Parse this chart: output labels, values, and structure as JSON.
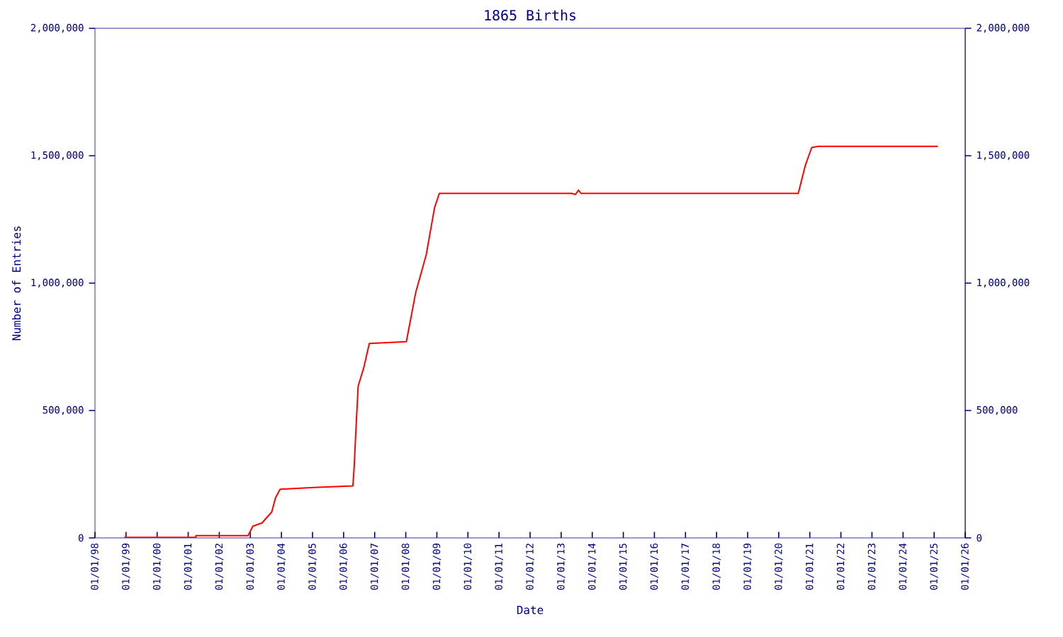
{
  "chart_data": {
    "type": "line",
    "title": "1865 Births",
    "xlabel": "Date",
    "ylabel": "Number of Entries",
    "x": [
      "1998-12-10",
      "2001-03-31",
      "2001-04-01",
      "2002-12-05",
      "2003-01-30",
      "2003-05-19",
      "2003-09-09",
      "2003-10-23",
      "2003-12-16",
      "2005-01-19",
      "2006-04-20",
      "2006-05-05",
      "2006-05-23",
      "2006-06-21",
      "2006-08-25",
      "2006-10-30",
      "2008-01-08",
      "2008-04-27",
      "2008-08-29",
      "2008-12-05",
      "2009-01-30",
      "2013-05-05",
      "2013-06-18",
      "2013-07-24",
      "2013-08-22",
      "2020-08-18",
      "2020-11-10",
      "2021-01-23",
      "2021-04-10",
      "2025-02-14"
    ],
    "series": [
      {
        "color": "#ff0000",
        "values": [
          2000,
          2000,
          9000,
          9000,
          46000,
          59000,
          102000,
          157000,
          191000,
          198000,
          204000,
          278000,
          407000,
          596000,
          667000,
          763000,
          770000,
          963000,
          1111000,
          1296000,
          1352000,
          1352000,
          1348000,
          1365000,
          1352000,
          1352000,
          1463000,
          1532000,
          1537000,
          1537000
        ]
      }
    ],
    "xlim": [
      "1998-01-01",
      "2026-01-01"
    ],
    "xticks": [
      {
        "value": "1998-01-01",
        "label": "01/01/98"
      },
      {
        "value": "1999-01-01",
        "label": "01/01/99"
      },
      {
        "value": "2000-01-01",
        "label": "01/01/00"
      },
      {
        "value": "2001-01-01",
        "label": "01/01/01"
      },
      {
        "value": "2002-01-01",
        "label": "01/01/02"
      },
      {
        "value": "2003-01-01",
        "label": "01/01/03"
      },
      {
        "value": "2004-01-01",
        "label": "01/01/04"
      },
      {
        "value": "2005-01-01",
        "label": "01/01/05"
      },
      {
        "value": "2006-01-01",
        "label": "01/01/06"
      },
      {
        "value": "2007-01-01",
        "label": "01/01/07"
      },
      {
        "value": "2008-01-01",
        "label": "01/01/08"
      },
      {
        "value": "2009-01-01",
        "label": "01/01/09"
      },
      {
        "value": "2010-01-01",
        "label": "01/01/10"
      },
      {
        "value": "2011-01-01",
        "label": "01/01/11"
      },
      {
        "value": "2012-01-01",
        "label": "01/01/12"
      },
      {
        "value": "2013-01-01",
        "label": "01/01/13"
      },
      {
        "value": "2014-01-01",
        "label": "01/01/14"
      },
      {
        "value": "2015-01-01",
        "label": "01/01/15"
      },
      {
        "value": "2016-01-01",
        "label": "01/01/16"
      },
      {
        "value": "2017-01-01",
        "label": "01/01/17"
      },
      {
        "value": "2018-01-01",
        "label": "01/01/18"
      },
      {
        "value": "2019-01-01",
        "label": "01/01/19"
      },
      {
        "value": "2020-01-01",
        "label": "01/01/20"
      },
      {
        "value": "2021-01-01",
        "label": "01/01/21"
      },
      {
        "value": "2022-01-01",
        "label": "01/01/22"
      },
      {
        "value": "2023-01-01",
        "label": "01/01/23"
      },
      {
        "value": "2024-01-01",
        "label": "01/01/24"
      },
      {
        "value": "2025-01-01",
        "label": "01/01/25"
      },
      {
        "value": "2026-01-01",
        "label": "01/01/26"
      }
    ],
    "ylim": [
      0,
      2000000
    ],
    "yticks": [
      0,
      {
        "value": 500000,
        "label": "500,000"
      },
      {
        "value": 1000000,
        "label": "1,000,000"
      },
      {
        "value": 1500000,
        "label": "1,500,000"
      },
      {
        "value": 2000000,
        "label": "2,000,000"
      }
    ],
    "y2lim": [
      0,
      2000000
    ],
    "y2ticks": [
      0,
      {
        "value": 500000,
        "label": "500,000"
      },
      {
        "value": 1000000,
        "label": "1,000,000"
      },
      {
        "value": 1500000,
        "label": "1,500,000"
      },
      {
        "value": 2000000,
        "label": "2,000,000"
      }
    ]
  }
}
